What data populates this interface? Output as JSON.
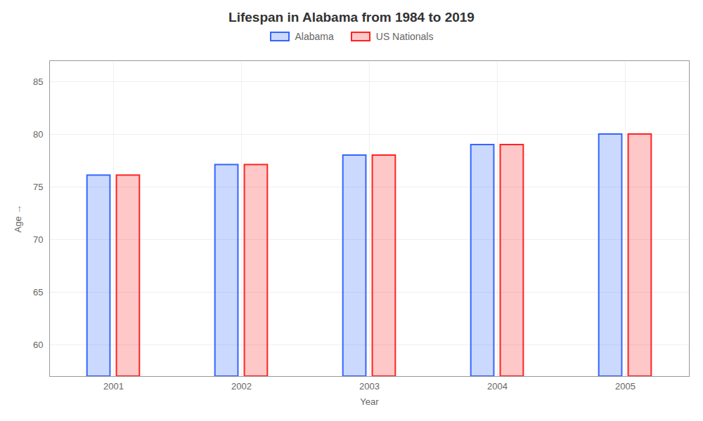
{
  "chart_data": {
    "type": "bar",
    "title": "Lifespan in Alabama from 1984 to 2019",
    "xlabel": "Year",
    "ylabel": "Age",
    "categories": [
      "2001",
      "2002",
      "2003",
      "2004",
      "2005"
    ],
    "series": [
      {
        "name": "Alabama",
        "color": "#3366ff",
        "values": [
          76.1,
          77.1,
          78.0,
          79.0,
          80.0
        ]
      },
      {
        "name": "US Nationals",
        "color": "#ff2222",
        "values": [
          76.1,
          77.1,
          78.0,
          79.0,
          80.0
        ]
      }
    ],
    "ylim": [
      57,
      87
    ],
    "yticks": [
      60,
      65,
      70,
      75,
      80,
      85
    ],
    "grid": true,
    "legend": "top"
  }
}
